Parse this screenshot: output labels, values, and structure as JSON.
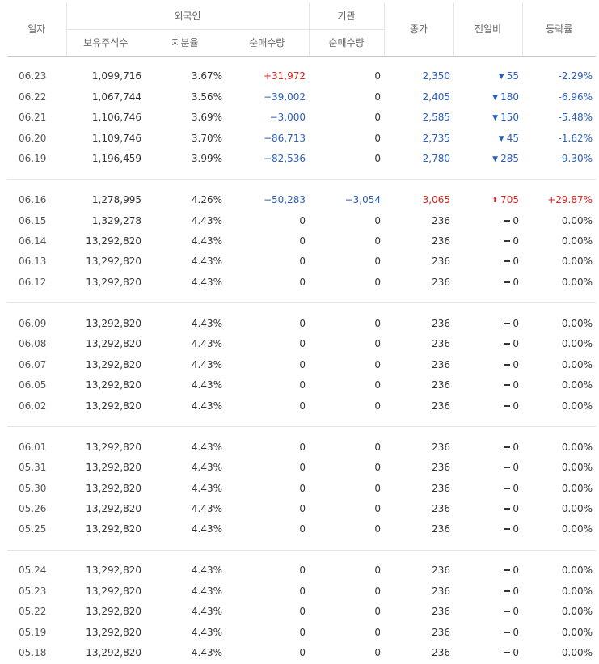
{
  "headers": {
    "date": "일자",
    "foreign": "외국인",
    "institution": "기관",
    "holdings": "보유주식수",
    "share": "지분율",
    "foreign_net": "순매수량",
    "inst_net": "순매수량",
    "close": "종가",
    "change": "전일비",
    "rate": "등락률"
  },
  "colors": {
    "up": "#e0201c",
    "down": "#2a5fbd",
    "neutral": "#333333"
  },
  "groups": [
    [
      {
        "date": "06.23",
        "holdings": "1,099,716",
        "share": "3.67%",
        "fnet": "+31,972",
        "fnet_dir": "up",
        "inet": "0",
        "inet_dir": "flat",
        "close": "2,350",
        "close_dir": "down",
        "change": "55",
        "change_dir": "down",
        "rate": "-2.29%",
        "rate_dir": "down"
      },
      {
        "date": "06.22",
        "holdings": "1,067,744",
        "share": "3.56%",
        "fnet": "−39,002",
        "fnet_dir": "down",
        "inet": "0",
        "inet_dir": "flat",
        "close": "2,405",
        "close_dir": "down",
        "change": "180",
        "change_dir": "down",
        "rate": "-6.96%",
        "rate_dir": "down"
      },
      {
        "date": "06.21",
        "holdings": "1,106,746",
        "share": "3.69%",
        "fnet": "−3,000",
        "fnet_dir": "down",
        "inet": "0",
        "inet_dir": "flat",
        "close": "2,585",
        "close_dir": "down",
        "change": "150",
        "change_dir": "down",
        "rate": "-5.48%",
        "rate_dir": "down"
      },
      {
        "date": "06.20",
        "holdings": "1,109,746",
        "share": "3.70%",
        "fnet": "−86,713",
        "fnet_dir": "down",
        "inet": "0",
        "inet_dir": "flat",
        "close": "2,735",
        "close_dir": "down",
        "change": "45",
        "change_dir": "down",
        "rate": "-1.62%",
        "rate_dir": "down"
      },
      {
        "date": "06.19",
        "holdings": "1,196,459",
        "share": "3.99%",
        "fnet": "−82,536",
        "fnet_dir": "down",
        "inet": "0",
        "inet_dir": "flat",
        "close": "2,780",
        "close_dir": "down",
        "change": "285",
        "change_dir": "down",
        "rate": "-9.30%",
        "rate_dir": "down"
      }
    ],
    [
      {
        "date": "06.16",
        "holdings": "1,278,995",
        "share": "4.26%",
        "fnet": "−50,283",
        "fnet_dir": "down",
        "inet": "−3,054",
        "inet_dir": "down",
        "close": "3,065",
        "close_dir": "up",
        "change": "705",
        "change_dir": "upper",
        "rate": "+29.87%",
        "rate_dir": "up"
      },
      {
        "date": "06.15",
        "holdings": "1,329,278",
        "share": "4.43%",
        "fnet": "0",
        "fnet_dir": "flat",
        "inet": "0",
        "inet_dir": "flat",
        "close": "236",
        "close_dir": "flat",
        "change": "0",
        "change_dir": "flat",
        "rate": "0.00%",
        "rate_dir": "flat"
      },
      {
        "date": "06.14",
        "holdings": "13,292,820",
        "share": "4.43%",
        "fnet": "0",
        "fnet_dir": "flat",
        "inet": "0",
        "inet_dir": "flat",
        "close": "236",
        "close_dir": "flat",
        "change": "0",
        "change_dir": "flat",
        "rate": "0.00%",
        "rate_dir": "flat"
      },
      {
        "date": "06.13",
        "holdings": "13,292,820",
        "share": "4.43%",
        "fnet": "0",
        "fnet_dir": "flat",
        "inet": "0",
        "inet_dir": "flat",
        "close": "236",
        "close_dir": "flat",
        "change": "0",
        "change_dir": "flat",
        "rate": "0.00%",
        "rate_dir": "flat"
      },
      {
        "date": "06.12",
        "holdings": "13,292,820",
        "share": "4.43%",
        "fnet": "0",
        "fnet_dir": "flat",
        "inet": "0",
        "inet_dir": "flat",
        "close": "236",
        "close_dir": "flat",
        "change": "0",
        "change_dir": "flat",
        "rate": "0.00%",
        "rate_dir": "flat"
      }
    ],
    [
      {
        "date": "06.09",
        "holdings": "13,292,820",
        "share": "4.43%",
        "fnet": "0",
        "fnet_dir": "flat",
        "inet": "0",
        "inet_dir": "flat",
        "close": "236",
        "close_dir": "flat",
        "change": "0",
        "change_dir": "flat",
        "rate": "0.00%",
        "rate_dir": "flat"
      },
      {
        "date": "06.08",
        "holdings": "13,292,820",
        "share": "4.43%",
        "fnet": "0",
        "fnet_dir": "flat",
        "inet": "0",
        "inet_dir": "flat",
        "close": "236",
        "close_dir": "flat",
        "change": "0",
        "change_dir": "flat",
        "rate": "0.00%",
        "rate_dir": "flat"
      },
      {
        "date": "06.07",
        "holdings": "13,292,820",
        "share": "4.43%",
        "fnet": "0",
        "fnet_dir": "flat",
        "inet": "0",
        "inet_dir": "flat",
        "close": "236",
        "close_dir": "flat",
        "change": "0",
        "change_dir": "flat",
        "rate": "0.00%",
        "rate_dir": "flat"
      },
      {
        "date": "06.05",
        "holdings": "13,292,820",
        "share": "4.43%",
        "fnet": "0",
        "fnet_dir": "flat",
        "inet": "0",
        "inet_dir": "flat",
        "close": "236",
        "close_dir": "flat",
        "change": "0",
        "change_dir": "flat",
        "rate": "0.00%",
        "rate_dir": "flat"
      },
      {
        "date": "06.02",
        "holdings": "13,292,820",
        "share": "4.43%",
        "fnet": "0",
        "fnet_dir": "flat",
        "inet": "0",
        "inet_dir": "flat",
        "close": "236",
        "close_dir": "flat",
        "change": "0",
        "change_dir": "flat",
        "rate": "0.00%",
        "rate_dir": "flat"
      }
    ],
    [
      {
        "date": "06.01",
        "holdings": "13,292,820",
        "share": "4.43%",
        "fnet": "0",
        "fnet_dir": "flat",
        "inet": "0",
        "inet_dir": "flat",
        "close": "236",
        "close_dir": "flat",
        "change": "0",
        "change_dir": "flat",
        "rate": "0.00%",
        "rate_dir": "flat"
      },
      {
        "date": "05.31",
        "holdings": "13,292,820",
        "share": "4.43%",
        "fnet": "0",
        "fnet_dir": "flat",
        "inet": "0",
        "inet_dir": "flat",
        "close": "236",
        "close_dir": "flat",
        "change": "0",
        "change_dir": "flat",
        "rate": "0.00%",
        "rate_dir": "flat"
      },
      {
        "date": "05.30",
        "holdings": "13,292,820",
        "share": "4.43%",
        "fnet": "0",
        "fnet_dir": "flat",
        "inet": "0",
        "inet_dir": "flat",
        "close": "236",
        "close_dir": "flat",
        "change": "0",
        "change_dir": "flat",
        "rate": "0.00%",
        "rate_dir": "flat"
      },
      {
        "date": "05.26",
        "holdings": "13,292,820",
        "share": "4.43%",
        "fnet": "0",
        "fnet_dir": "flat",
        "inet": "0",
        "inet_dir": "flat",
        "close": "236",
        "close_dir": "flat",
        "change": "0",
        "change_dir": "flat",
        "rate": "0.00%",
        "rate_dir": "flat"
      },
      {
        "date": "05.25",
        "holdings": "13,292,820",
        "share": "4.43%",
        "fnet": "0",
        "fnet_dir": "flat",
        "inet": "0",
        "inet_dir": "flat",
        "close": "236",
        "close_dir": "flat",
        "change": "0",
        "change_dir": "flat",
        "rate": "0.00%",
        "rate_dir": "flat"
      }
    ],
    [
      {
        "date": "05.24",
        "holdings": "13,292,820",
        "share": "4.43%",
        "fnet": "0",
        "fnet_dir": "flat",
        "inet": "0",
        "inet_dir": "flat",
        "close": "236",
        "close_dir": "flat",
        "change": "0",
        "change_dir": "flat",
        "rate": "0.00%",
        "rate_dir": "flat"
      },
      {
        "date": "05.23",
        "holdings": "13,292,820",
        "share": "4.43%",
        "fnet": "0",
        "fnet_dir": "flat",
        "inet": "0",
        "inet_dir": "flat",
        "close": "236",
        "close_dir": "flat",
        "change": "0",
        "change_dir": "flat",
        "rate": "0.00%",
        "rate_dir": "flat"
      },
      {
        "date": "05.22",
        "holdings": "13,292,820",
        "share": "4.43%",
        "fnet": "0",
        "fnet_dir": "flat",
        "inet": "0",
        "inet_dir": "flat",
        "close": "236",
        "close_dir": "flat",
        "change": "0",
        "change_dir": "flat",
        "rate": "0.00%",
        "rate_dir": "flat"
      },
      {
        "date": "05.19",
        "holdings": "13,292,820",
        "share": "4.43%",
        "fnet": "0",
        "fnet_dir": "flat",
        "inet": "0",
        "inet_dir": "flat",
        "close": "236",
        "close_dir": "flat",
        "change": "0",
        "change_dir": "flat",
        "rate": "0.00%",
        "rate_dir": "flat"
      },
      {
        "date": "05.18",
        "holdings": "13,292,820",
        "share": "4.43%",
        "fnet": "0",
        "fnet_dir": "flat",
        "inet": "0",
        "inet_dir": "flat",
        "close": "236",
        "close_dir": "flat",
        "change": "0",
        "change_dir": "flat",
        "rate": "0.00%",
        "rate_dir": "flat"
      }
    ]
  ]
}
